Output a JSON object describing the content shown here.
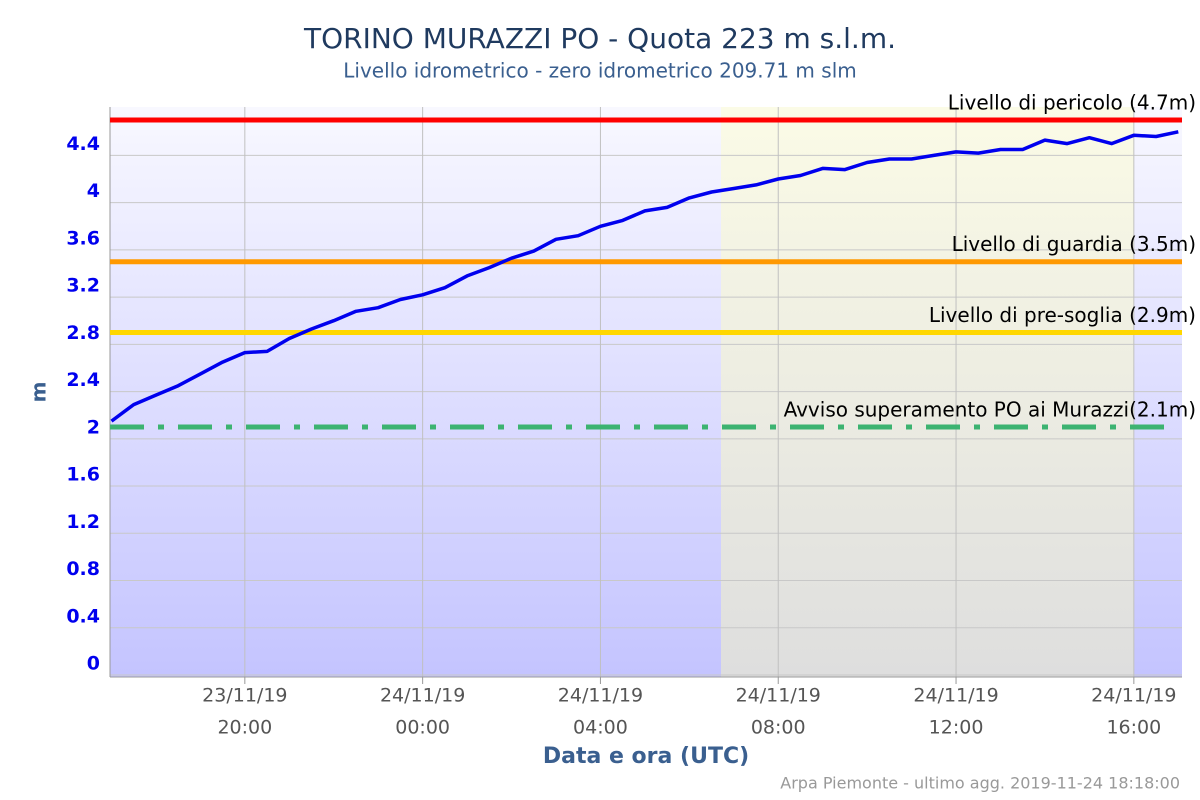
{
  "chart_data": {
    "type": "line",
    "title": "TORINO MURAZZI PO - Quota 223 m s.l.m.",
    "subtitle": "Livello idrometrico - zero idrometrico 209.71 m slm",
    "y_label": "m",
    "x_label": "Data e ora (UTC)",
    "credits": "Arpa Piemonte - ultimo agg. 2019-11-24 18:18:00",
    "x": [
      "2019-11-23 17:00",
      "2019-11-23 17:30",
      "2019-11-23 18:00",
      "2019-11-23 18:30",
      "2019-11-23 19:00",
      "2019-11-23 19:30",
      "2019-11-23 20:00",
      "2019-11-23 20:30",
      "2019-11-23 21:00",
      "2019-11-23 21:30",
      "2019-11-23 22:00",
      "2019-11-23 22:30",
      "2019-11-23 23:00",
      "2019-11-23 23:30",
      "2019-11-24 00:00",
      "2019-11-24 00:30",
      "2019-11-24 01:00",
      "2019-11-24 01:30",
      "2019-11-24 02:00",
      "2019-11-24 02:30",
      "2019-11-24 03:00",
      "2019-11-24 03:30",
      "2019-11-24 04:00",
      "2019-11-24 04:30",
      "2019-11-24 05:00",
      "2019-11-24 05:30",
      "2019-11-24 06:00",
      "2019-11-24 06:30",
      "2019-11-24 07:00",
      "2019-11-24 07:30",
      "2019-11-24 08:00",
      "2019-11-24 08:30",
      "2019-11-24 09:00",
      "2019-11-24 09:30",
      "2019-11-24 10:00",
      "2019-11-24 10:30",
      "2019-11-24 11:00",
      "2019-11-24 11:30",
      "2019-11-24 12:00",
      "2019-11-24 12:30",
      "2019-11-24 13:00",
      "2019-11-24 13:30",
      "2019-11-24 14:00",
      "2019-11-24 14:30",
      "2019-11-24 15:00",
      "2019-11-24 15:30",
      "2019-11-24 16:00",
      "2019-11-24 16:30",
      "2019-11-24 17:00"
    ],
    "series": [
      {
        "color": "#0000ee",
        "values": [
          2.15,
          2.29,
          2.37,
          2.45,
          2.55,
          2.65,
          2.73,
          2.74,
          2.85,
          2.93,
          3.0,
          3.08,
          3.11,
          3.18,
          3.22,
          3.28,
          3.38,
          3.45,
          3.53,
          3.59,
          3.69,
          3.72,
          3.8,
          3.85,
          3.93,
          3.96,
          4.04,
          4.09,
          4.12,
          4.15,
          4.2,
          4.23,
          4.29,
          4.28,
          4.34,
          4.37,
          4.37,
          4.4,
          4.43,
          4.42,
          4.45,
          4.45,
          4.53,
          4.5,
          4.55,
          4.5,
          4.57,
          4.56,
          4.6
        ]
      }
    ],
    "thresholds": [
      {
        "label": "Livello di pericolo (4.7m)",
        "value": 4.7,
        "color": "#ff0000",
        "style": "solid"
      },
      {
        "label": "Livello di guardia (3.5m)",
        "value": 3.5,
        "color": "#ff9900",
        "style": "solid"
      },
      {
        "label": "Livello di pre-soglia (2.9m)",
        "value": 2.9,
        "color": "#ffd700",
        "style": "solid"
      },
      {
        "label": "Avviso superamento PO ai Murazzi(2.1m)",
        "value": 2.1,
        "color": "#3cb371",
        "style": "dashdot"
      }
    ],
    "xlim": [
      "2019-11-23 16:58",
      "2019-11-24 17:05"
    ],
    "xticks": [
      {
        "value": "2019-11-23 20:00",
        "label": [
          "23/11/19",
          "20:00"
        ]
      },
      {
        "value": "2019-11-24 00:00",
        "label": [
          "24/11/19",
          "00:00"
        ]
      },
      {
        "value": "2019-11-24 04:00",
        "label": [
          "24/11/19",
          "04:00"
        ]
      },
      {
        "value": "2019-11-24 08:00",
        "label": [
          "24/11/19",
          "08:00"
        ]
      },
      {
        "value": "2019-11-24 12:00",
        "label": [
          "24/11/19",
          "12:00"
        ]
      },
      {
        "value": "2019-11-24 16:00",
        "label": [
          "24/11/19",
          "16:00"
        ]
      }
    ],
    "ylim": [
      0,
      4.81
    ],
    "yticks": [
      0,
      0.4,
      0.8,
      1.2,
      1.6,
      2,
      2.4,
      2.8,
      3.2,
      3.6,
      4,
      4.4
    ],
    "grid": true
  }
}
